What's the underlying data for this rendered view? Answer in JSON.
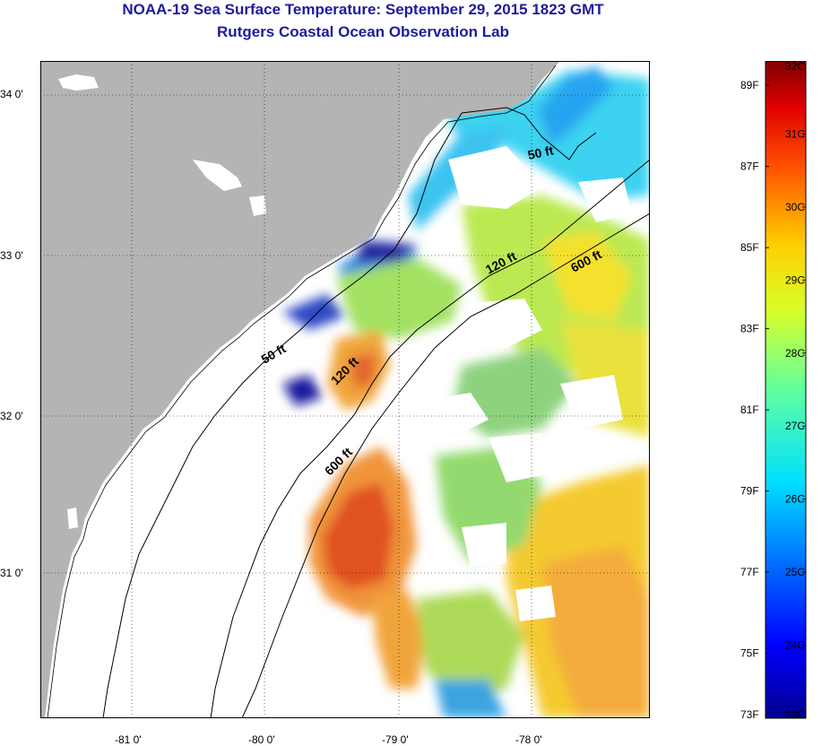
{
  "header": {
    "title": "NOAA-19 Sea Surface Temperature:  September 29, 2015 1823 GMT",
    "subtitle": "Rutgers Coastal Ocean Observation Lab"
  },
  "map": {
    "lat_ticks": [
      "34 0'",
      "33 0'",
      "32 0'",
      "31 0'"
    ],
    "lon_ticks": [
      "-81 0'",
      "-80 0'",
      "-79 0'",
      "-78 0'"
    ],
    "contours": [
      "50 ft",
      "120 ft",
      "600 ft",
      "50 ft",
      "120 ft",
      "600 ft"
    ],
    "colors": {
      "land": "#b4b4b4",
      "cloud": "#ffffff"
    }
  },
  "colorbar": {
    "f_labels": [
      "89F",
      "87F",
      "85F",
      "83F",
      "81F",
      "79F",
      "77F",
      "75F",
      "73F"
    ],
    "c_labels": [
      "32C",
      "31C",
      "30C",
      "29C",
      "28C",
      "27C",
      "26C",
      "25C",
      "24C",
      "23C"
    ],
    "range_c": [
      23,
      32
    ]
  }
}
